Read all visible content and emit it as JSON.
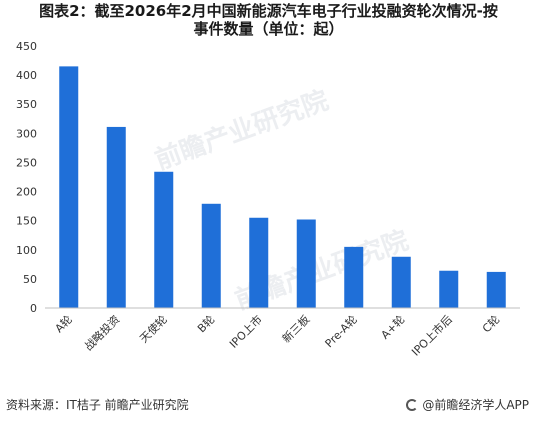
{
  "title_line1": "图表2：截至2026年2月中国新能源汽车电子行业投融资轮次情况-按",
  "title_line2": "事件数量（单位：起）",
  "source": "资料来源：IT桔子  前瞻产业研究院",
  "brand": "@前瞻经济学人APP",
  "watermark": "前瞻产业研究院",
  "colors": {
    "bar": "#1f6fd8",
    "axis": "#bfbfbf",
    "text": "#333333"
  },
  "chart_data": {
    "type": "bar",
    "categories": [
      "A轮",
      "战略投资",
      "天使轮",
      "B轮",
      "IPO上市",
      "新三板",
      "Pre-A轮",
      "A+轮",
      "IPO上市后",
      "C轮"
    ],
    "values": [
      415,
      311,
      234,
      179,
      155,
      152,
      105,
      88,
      64,
      62
    ],
    "ylim": [
      0,
      450
    ],
    "yticks": [
      0,
      50,
      100,
      150,
      200,
      250,
      300,
      350,
      400,
      450
    ],
    "xlabel": "",
    "ylabel": "",
    "grid": false
  }
}
